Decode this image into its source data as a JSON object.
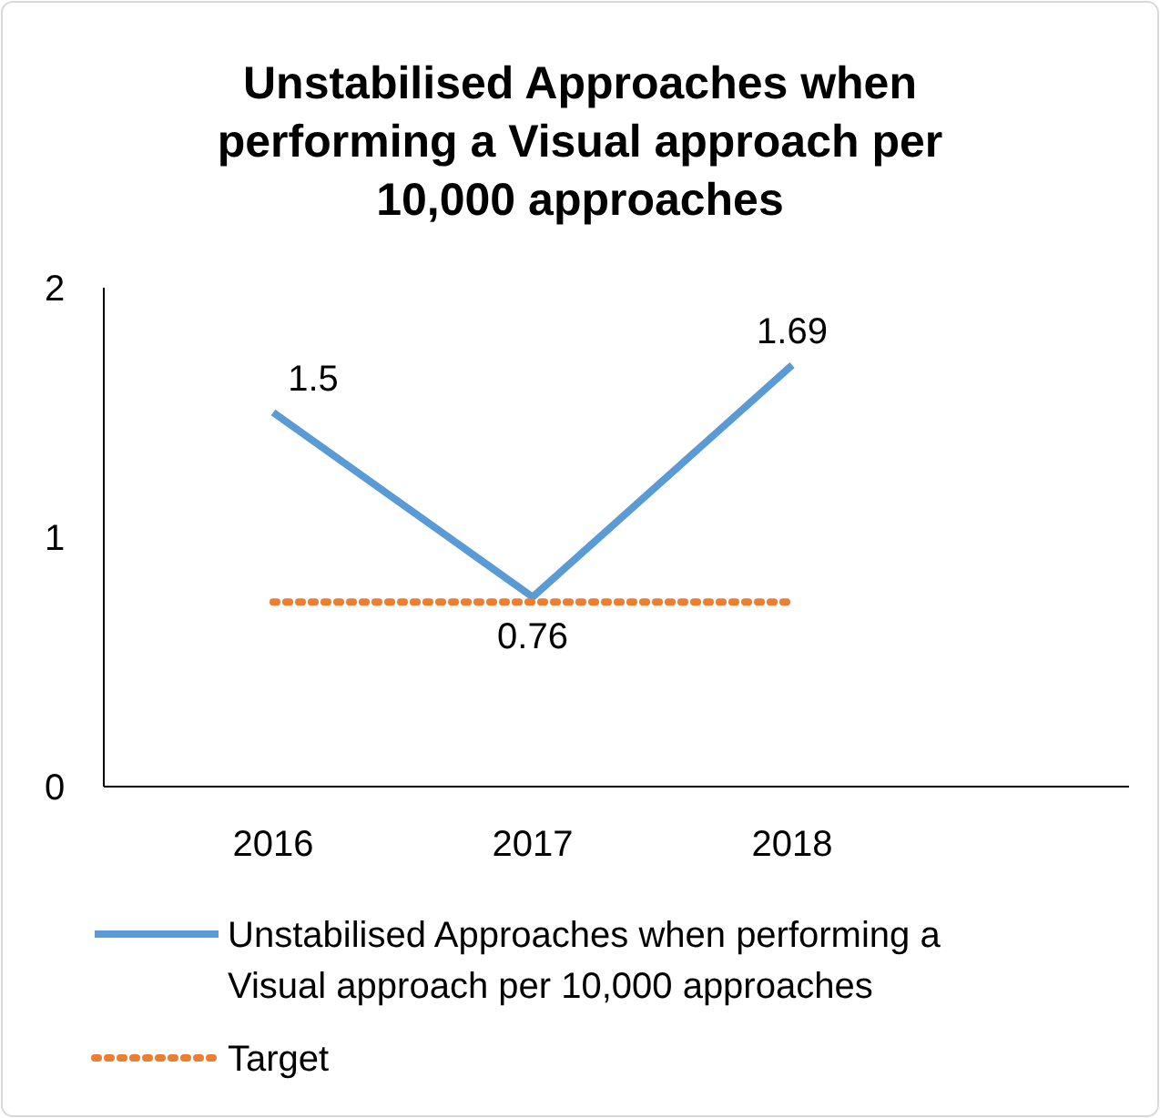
{
  "chart_data": {
    "type": "line",
    "title": "Unstabilised Approaches when performing a Visual approach per 10,000 approaches",
    "categories": [
      "2016",
      "2017",
      "2018"
    ],
    "series": [
      {
        "name": "Unstabilised Approaches when performing a Visual approach per 10,000 approaches",
        "color": "#5b9bd5",
        "values": [
          1.5,
          0.76,
          1.69
        ],
        "value_labels": [
          "1.5",
          "0.76",
          "1.69"
        ],
        "line_style": "solid"
      },
      {
        "name": "Target",
        "color": "#ed7d31",
        "values": [
          0.74,
          0.74,
          0.74
        ],
        "line_style": "dotted"
      }
    ],
    "ylim": [
      0,
      2
    ],
    "yticks": [
      0,
      1,
      2
    ],
    "grid": false,
    "legend": "bottom",
    "marker": "none"
  }
}
